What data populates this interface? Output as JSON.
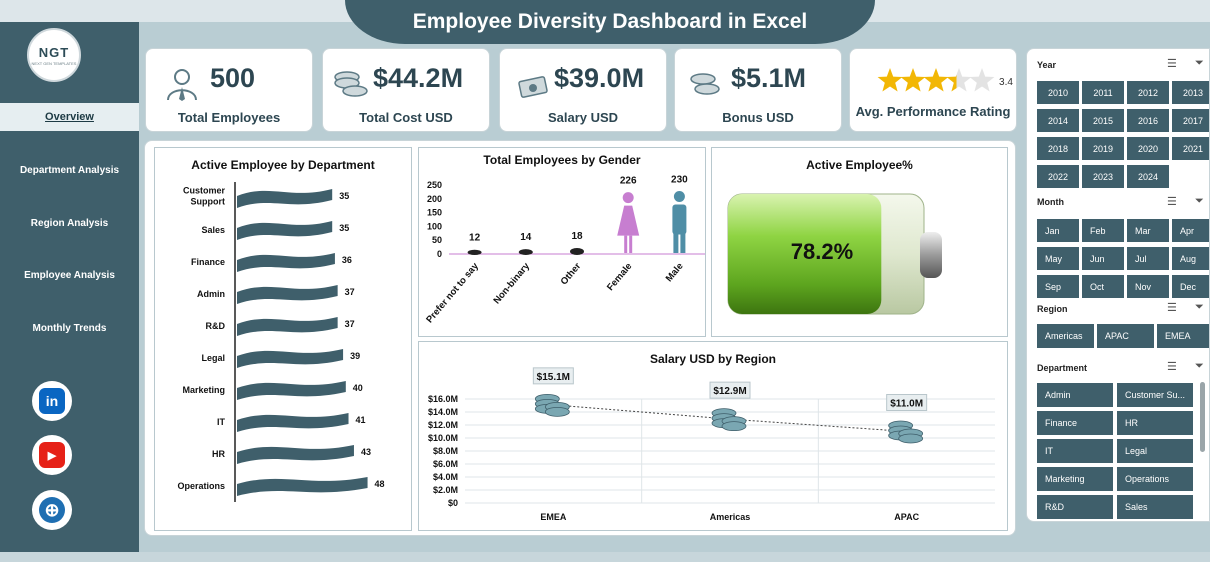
{
  "header": {
    "title": "Employee Diversity Dashboard in Excel"
  },
  "sidebar": {
    "logo_text": "NGT",
    "logo_sub": "NEXT GEN TEMPLATES",
    "items": [
      {
        "label": "Overview",
        "active": true
      },
      {
        "label": "Department  Analysis"
      },
      {
        "label": "Region  Analysis"
      },
      {
        "label": "Employee Analysis"
      },
      {
        "label": "Monthly Trends"
      }
    ],
    "social": [
      {
        "icon": "linkedin-icon",
        "text": "in",
        "color": "#0a66c2"
      },
      {
        "icon": "youtube-icon",
        "text": "▶",
        "color": "#e62117"
      },
      {
        "icon": "globe-icon",
        "text": "⊕",
        "color": "#1f6fb2"
      }
    ]
  },
  "kpis": [
    {
      "icon": "employee-icon",
      "value": "500",
      "label": "Total Employees"
    },
    {
      "icon": "coins-icon",
      "value": "$44.2M",
      "label": "Total Cost USD"
    },
    {
      "icon": "cash-icon",
      "value": "$39.0M",
      "label": "Salary USD"
    },
    {
      "icon": "coins-icon",
      "value": "$5.1M",
      "label": "Bonus USD"
    },
    {
      "icon": "star-icon",
      "value": "3.4",
      "label": "Avg. Performance Rating",
      "rating": 3.4,
      "max": 5
    }
  ],
  "charts": {
    "department": {
      "title": "Active Employee by Department",
      "chart_data": {
        "type": "bar",
        "categories": [
          "Customer Support",
          "Sales",
          "Finance",
          "Admin",
          "R&D",
          "Legal",
          "Marketing",
          "IT",
          "HR",
          "Operations"
        ],
        "values": [
          35,
          35,
          36,
          37,
          37,
          39,
          40,
          41,
          43,
          48
        ]
      }
    },
    "gender": {
      "title": "Total Employees by Gender",
      "chart_data": {
        "type": "bar",
        "categories": [
          "Prefer not to say",
          "Non-binary",
          "Other",
          "Female",
          "Male"
        ],
        "values": [
          12,
          14,
          18,
          226,
          230
        ],
        "y_ticks": [
          "250",
          "200",
          "150",
          "100",
          "50",
          "0"
        ],
        "ylim": [
          0,
          250
        ]
      }
    },
    "active": {
      "title": "Active Employee%",
      "chart_data": {
        "type": "gauge",
        "value": 78.2,
        "label": "78.2%"
      }
    },
    "region": {
      "title": "Salary USD by Region",
      "chart_data": {
        "type": "line",
        "categories": [
          "EMEA",
          "Americas",
          "APAC"
        ],
        "values": [
          15.1,
          12.9,
          11.0
        ],
        "labels": [
          "$15.1M",
          "$12.9M",
          "$11.0M"
        ],
        "y_ticks": [
          "$16.0M",
          "$14.0M",
          "$12.0M",
          "$10.0M",
          "$8.0M",
          "$6.0M",
          "$4.0M",
          "$2.0M",
          "$0"
        ],
        "ylim": [
          0,
          16
        ]
      }
    }
  },
  "slicers": {
    "year": {
      "title": "Year",
      "items": [
        "2010",
        "2011",
        "2012",
        "2013",
        "2014",
        "2015",
        "2016",
        "2017",
        "2018",
        "2019",
        "2020",
        "2021",
        "2022",
        "2023",
        "2024"
      ]
    },
    "month": {
      "title": "Month",
      "items": [
        "Jan",
        "Feb",
        "Mar",
        "Apr",
        "May",
        "Jun",
        "Jul",
        "Aug",
        "Sep",
        "Oct",
        "Nov",
        "Dec"
      ]
    },
    "region": {
      "title": "Region",
      "items": [
        "Americas",
        "APAC",
        "EMEA"
      ]
    },
    "department": {
      "title": "Department",
      "items": [
        "Admin",
        "Customer Su...",
        "Finance",
        "HR",
        "IT",
        "Legal",
        "Marketing",
        "Operations",
        "R&D",
        "Sales"
      ]
    }
  },
  "colors": {
    "primary": "#3f5f6b",
    "accent_green": "#7cc431",
    "female": "#c77ed0",
    "male": "#4f8ea6",
    "coin": "#7aa7b2"
  }
}
